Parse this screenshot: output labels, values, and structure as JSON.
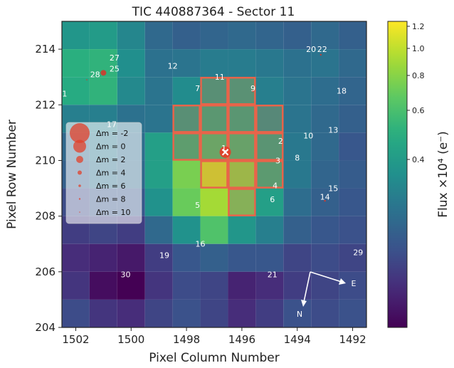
{
  "chart_data": {
    "type": "heatmap",
    "title": "TIC 440887364 - Sector 11",
    "xlabel": "Pixel Column Number",
    "ylabel": "Pixel Row Number",
    "colorbar_label": "Flux ×10⁴ (e⁻)",
    "colormap": "viridis",
    "color_scale": "log",
    "xlim": [
      1502.5,
      1491.5
    ],
    "ylim": [
      204,
      215
    ],
    "x_ticks": [
      1502,
      1500,
      1498,
      1496,
      1494,
      1492
    ],
    "y_ticks": [
      204,
      206,
      208,
      210,
      212,
      214
    ],
    "colorbar_ticks": [
      "0.4",
      "0.6",
      "0.8",
      "1.0",
      "1.2"
    ],
    "colorbar_tick_values": [
      0.4,
      0.6,
      0.8,
      1.0,
      1.2
    ],
    "colorbar_range": [
      0.1,
      1.25
    ],
    "pixel_columns": [
      1502,
      1501,
      1500,
      1499,
      1498,
      1497,
      1496,
      1495,
      1494,
      1493,
      1492
    ],
    "pixel_rows": [
      215,
      214,
      213,
      212,
      211,
      210,
      209,
      208,
      207,
      206,
      205
    ],
    "flux_grid": [
      [
        0.38,
        0.4,
        0.32,
        0.24,
        0.22,
        0.23,
        0.24,
        0.23,
        0.22,
        0.24,
        0.22
      ],
      [
        0.5,
        0.52,
        0.35,
        0.26,
        0.27,
        0.29,
        0.29,
        0.28,
        0.26,
        0.27,
        0.24
      ],
      [
        0.48,
        0.52,
        0.33,
        0.27,
        0.34,
        0.4,
        0.42,
        0.3,
        0.27,
        0.25,
        0.23
      ],
      [
        0.3,
        0.3,
        0.26,
        0.27,
        0.4,
        0.46,
        0.45,
        0.36,
        0.27,
        0.24,
        0.22
      ],
      [
        0.24,
        0.28,
        0.25,
        0.42,
        0.5,
        0.56,
        0.54,
        0.44,
        0.28,
        0.24,
        0.2
      ],
      [
        0.22,
        0.26,
        0.24,
        0.42,
        0.75,
        1.02,
        0.78,
        0.48,
        0.28,
        0.23,
        0.21
      ],
      [
        0.18,
        0.2,
        0.2,
        0.36,
        0.7,
        0.9,
        0.68,
        0.42,
        0.25,
        0.22,
        0.2
      ],
      [
        0.16,
        0.17,
        0.16,
        0.24,
        0.36,
        0.62,
        0.38,
        0.3,
        0.22,
        0.2,
        0.19
      ],
      [
        0.14,
        0.13,
        0.12,
        0.16,
        0.2,
        0.22,
        0.2,
        0.2,
        0.17,
        0.18,
        0.17
      ],
      [
        0.15,
        0.11,
        0.1,
        0.15,
        0.18,
        0.17,
        0.13,
        0.14,
        0.16,
        0.17,
        0.18
      ],
      [
        0.18,
        0.15,
        0.14,
        0.17,
        0.19,
        0.17,
        0.14,
        0.16,
        0.19,
        0.18,
        0.19
      ]
    ],
    "aperture_pixels": [
      [
        1497,
        213
      ],
      [
        1496,
        213
      ],
      [
        1498,
        212
      ],
      [
        1497,
        212
      ],
      [
        1496,
        212
      ],
      [
        1495,
        212
      ],
      [
        1498,
        211
      ],
      [
        1497,
        211
      ],
      [
        1496,
        211
      ],
      [
        1495,
        211
      ],
      [
        1497,
        210
      ],
      [
        1496,
        210
      ],
      [
        1495,
        210
      ],
      [
        1496,
        209
      ]
    ],
    "stars": [
      {
        "id": "1",
        "col": 1496.65,
        "row": 210.45,
        "mag": 2
      },
      {
        "id": "1",
        "col": 1502.4,
        "row": 212.4,
        "mag": 10
      },
      {
        "id": "2",
        "col": 1494.6,
        "row": 210.7,
        "mag": 10
      },
      {
        "id": "3",
        "col": 1494.7,
        "row": 210.0,
        "mag": 10
      },
      {
        "id": "4",
        "col": 1494.8,
        "row": 209.1,
        "mag": 10
      },
      {
        "id": "5",
        "col": 1497.6,
        "row": 208.4,
        "mag": 10
      },
      {
        "id": "6",
        "col": 1494.9,
        "row": 208.6,
        "mag": 10
      },
      {
        "id": "7",
        "col": 1497.6,
        "row": 212.6,
        "mag": 10
      },
      {
        "id": "8",
        "col": 1494.0,
        "row": 210.1,
        "mag": 10
      },
      {
        "id": "9",
        "col": 1495.6,
        "row": 212.6,
        "mag": 8
      },
      {
        "id": "10",
        "col": 1493.6,
        "row": 210.9,
        "mag": 10
      },
      {
        "id": "11",
        "col": 1496.8,
        "row": 213.0,
        "mag": 10
      },
      {
        "id": "12",
        "col": 1498.5,
        "row": 213.4,
        "mag": 10
      },
      {
        "id": "13",
        "col": 1492.7,
        "row": 211.1,
        "mag": 10
      },
      {
        "id": "14",
        "col": 1493.0,
        "row": 208.7,
        "mag": 8
      },
      {
        "id": "15",
        "col": 1492.7,
        "row": 209.0,
        "mag": 10
      },
      {
        "id": "16",
        "col": 1497.5,
        "row": 207.0,
        "mag": 10
      },
      {
        "id": "17",
        "col": 1500.7,
        "row": 211.3,
        "mag": 10
      },
      {
        "id": "18",
        "col": 1492.4,
        "row": 212.5,
        "mag": 10
      },
      {
        "id": "19",
        "col": 1498.8,
        "row": 206.6,
        "mag": 10
      },
      {
        "id": "20",
        "col": 1493.5,
        "row": 214.0,
        "mag": 10
      },
      {
        "id": "22",
        "col": 1493.1,
        "row": 214.0,
        "mag": 8
      },
      {
        "id": "21",
        "col": 1494.9,
        "row": 205.9,
        "mag": 10
      },
      {
        "id": "25",
        "col": 1500.6,
        "row": 213.3,
        "mag": 10
      },
      {
        "id": "27",
        "col": 1500.6,
        "row": 213.7,
        "mag": 10
      },
      {
        "id": "28",
        "col": 1501.3,
        "row": 213.1,
        "mag": 10
      },
      {
        "id": "29",
        "col": 1491.8,
        "row": 206.7,
        "mag": 10
      },
      {
        "id": "30",
        "col": 1500.2,
        "row": 205.9,
        "mag": 10
      }
    ],
    "red_dots": [
      {
        "col": 1501.0,
        "row": 213.15,
        "size": 4
      },
      {
        "col": 1495.6,
        "row": 212.5,
        "size": 1.5
      },
      {
        "col": 1493.0,
        "row": 208.55,
        "size": 1.2
      },
      {
        "col": 1493.15,
        "row": 213.8,
        "size": 1.2
      },
      {
        "col": 1501.6,
        "row": 212.9,
        "size": 0.8
      }
    ],
    "target": {
      "col": 1496.6,
      "row": 210.3
    },
    "legend": {
      "placement": "left",
      "entries": [
        "Δm = -2",
        "Δm = 0",
        "Δm = 2",
        "Δm = 4",
        "Δm = 6",
        "Δm = 8",
        "Δm = 10"
      ]
    },
    "compass": {
      "north_label": "N",
      "east_label": "E"
    }
  }
}
